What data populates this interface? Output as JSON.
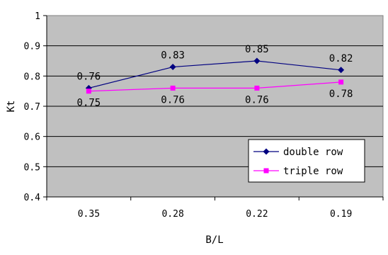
{
  "chart_data": {
    "type": "line",
    "categories": [
      "0.35",
      "0.28",
      "0.22",
      "0.19"
    ],
    "xlabel": "B/L",
    "ylabel": "Kt",
    "ylim": [
      0.4,
      1.0
    ],
    "yticks": [
      "0.4",
      "0.5",
      "0.6",
      "0.7",
      "0.8",
      "0.9",
      "1"
    ],
    "grid": true,
    "legend_position": "bottom-right",
    "plot_background": "#c0c0c0",
    "series": [
      {
        "name": "double row",
        "values": [
          0.76,
          0.83,
          0.85,
          0.82
        ],
        "labels": [
          "0.76",
          "0.83",
          "0.85",
          "0.82"
        ],
        "color": "#000080",
        "marker": "diamond"
      },
      {
        "name": "triple row",
        "values": [
          0.75,
          0.76,
          0.76,
          0.78
        ],
        "labels": [
          "0.75",
          "0.76",
          "0.76",
          "0.78"
        ],
        "color": "#ff00ff",
        "marker": "square"
      }
    ]
  }
}
